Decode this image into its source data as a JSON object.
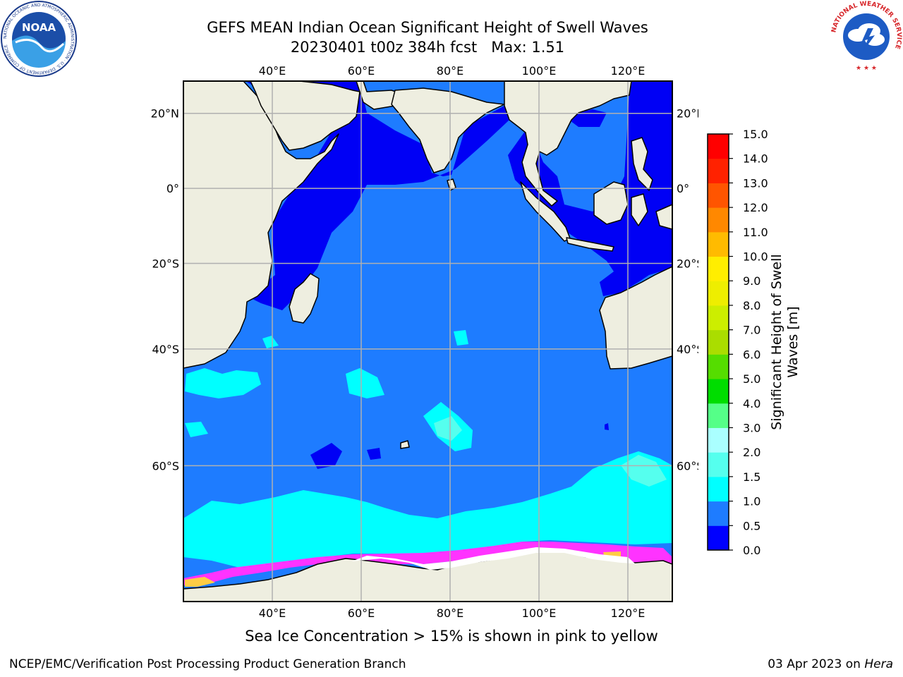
{
  "header": {
    "title_line1": "GEFS MEAN Indian Ocean Significant Height of Swell Waves",
    "title_line2": "20230401 t00z 384h fcst   Max: 1.51"
  },
  "logos": {
    "noaa": {
      "text": "NOAA",
      "ring_text": "NATIONAL OCEANIC AND ATMOSPHERIC ADMINISTRATION · U.S. DEPARTMENT OF COMMERCE"
    },
    "nws": {
      "ring_text": "NATIONAL WEATHER SERVICE"
    }
  },
  "map": {
    "lon_range": [
      20,
      130
    ],
    "lat_range": [
      -74,
      28
    ],
    "lon_ticks": [
      "40°E",
      "60°E",
      "80°E",
      "100°E",
      "120°E"
    ],
    "lon_tick_values": [
      40,
      60,
      80,
      100,
      120
    ],
    "lat_ticks": [
      "20°N",
      "0°",
      "20°S",
      "40°S",
      "60°S"
    ],
    "lat_tick_values": [
      20,
      0,
      -20,
      -40,
      -60
    ],
    "grid": true,
    "colors": {
      "land": "#eeeee0",
      "ocean_base": "#1e7cff",
      "low": "#0000f5",
      "swell_1_1_5": "#00ffff",
      "swell_1_5_2": "#55ffee",
      "ice": "#ff33ff"
    }
  },
  "colorbar": {
    "label": "Significant Height of Swell Waves [m]",
    "ticks": [
      "0.0",
      "0.5",
      "1.0",
      "1.5",
      "2.0",
      "3.0",
      "4.0",
      "5.0",
      "6.0",
      "7.0",
      "8.0",
      "9.0",
      "10.0",
      "11.0",
      "12.0",
      "13.0",
      "14.0",
      "15.0"
    ],
    "colors": [
      "#0000ff",
      "#1e7cff",
      "#00ffff",
      "#55ffee",
      "#aaffff",
      "#55ff88",
      "#00dd00",
      "#55dd00",
      "#aadd00",
      "#ccee00",
      "#eeee00",
      "#ffee00",
      "#ffbb00",
      "#ff8800",
      "#ff5500",
      "#ff2200",
      "#ff0000"
    ]
  },
  "footer": {
    "note": "Sea Ice Concentration > 15% is shown in pink to yellow",
    "credit": "NCEP/EMC/Verification Post Processing Product Generation Branch",
    "date_prefix": "03 Apr 2023 on ",
    "date_host": "Hera"
  }
}
